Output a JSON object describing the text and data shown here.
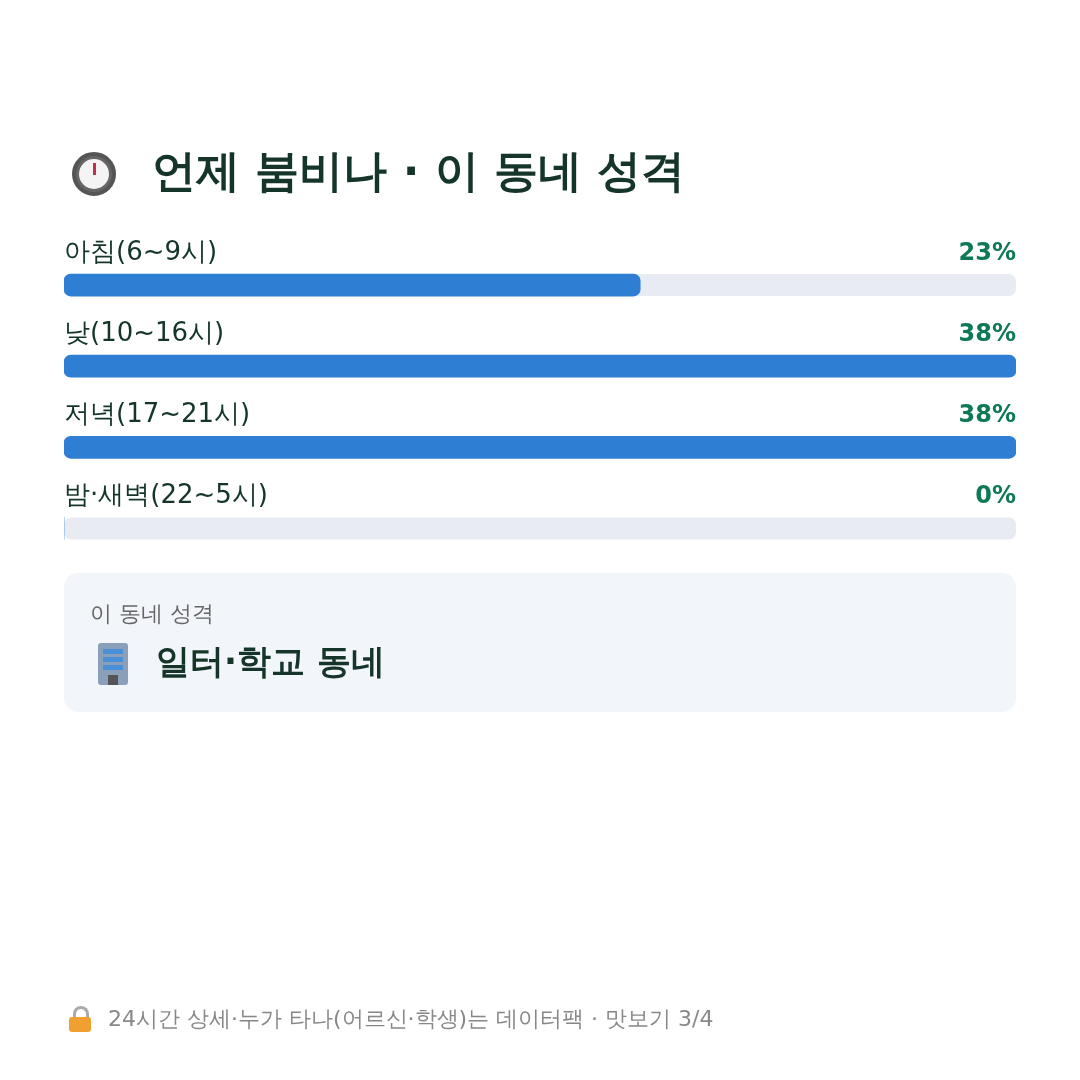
{
  "chart_data": {
    "type": "bar",
    "orientation": "horizontal",
    "title": "언제 붐비나 · 이 동네 성격",
    "categories": [
      "아침(6~9시)",
      "낮(10~16시)",
      "저녁(17~21시)",
      "밤·새벽(22~5시)"
    ],
    "values": [
      23,
      38,
      38,
      0
    ],
    "value_labels": [
      "23%",
      "38%",
      "38%",
      "0%"
    ],
    "color": "#2e7fd4",
    "xlim": [
      0,
      38
    ],
    "tick_labels": false,
    "annotations": [
      "이 동네 성격",
      "일터·학교 동네",
      "24시간 상세·누가 타나(어르신·학생)는 데이터팩 · 맛보기 3/4"
    ]
  }
}
